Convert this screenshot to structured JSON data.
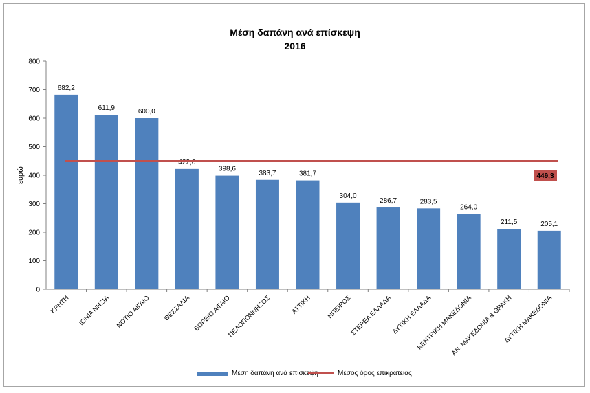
{
  "chart_data": {
    "type": "bar",
    "title": "Μέση δαπάνη ανά επίσκεψη",
    "subtitle": "2016",
    "ylabel": "ευρώ",
    "ylim": [
      0,
      800
    ],
    "yticks": [
      0,
      100,
      200,
      300,
      400,
      500,
      600,
      700,
      800
    ],
    "grid": false,
    "legend_position": "bottom",
    "categories": [
      "ΚΡΗΤΗ",
      "ΙΟΝΙΑ ΝΗΣΙΑ",
      "ΝΟΤΙΟ ΑΙΓΑΙΟ",
      "ΘΕΣΣΑΛΙΑ",
      "ΒΟΡΕΙΟ ΑΙΓΑΙΟ",
      "ΠΕΛΟΠΟΝΝΗΣΟΣ",
      "ΑΤΤΙΚΗ",
      "ΗΠΕΙΡΟΣ",
      "ΣΤΕΡΕΑ ΕΛΛΑΔΑ",
      "ΔΥΤΙΚΗ ΕΛΛΑΔΑ",
      "ΚΕΝΤΡΙΚΗ ΜΑΚΕΔΟΝΙΑ",
      "ΑΝ. ΜΑΚΕΔΟΝΙΑ & ΘΡΑΚΗ",
      "ΔΥΤΙΚΗ ΜΑΚΕΔΟΝΙΑ"
    ],
    "series": [
      {
        "name": "Μέση δαπάνη ανά επίσκεψη",
        "type": "bar",
        "color": "#4f81bd",
        "values": [
          682.2,
          611.9,
          600.0,
          422.0,
          398.6,
          383.7,
          381.7,
          304.0,
          286.7,
          283.5,
          264.0,
          211.5,
          205.1
        ],
        "labels": [
          "682,2",
          "611,9",
          "600,0",
          "422,0",
          "398,6",
          "383,7",
          "381,7",
          "304,0",
          "286,7",
          "283,5",
          "264,0",
          "211,5",
          "205,1"
        ]
      },
      {
        "name": "Μέσος όρος επικράτειας",
        "type": "line",
        "color": "#c0504d",
        "value": 449.3,
        "label": "449,3"
      }
    ]
  }
}
